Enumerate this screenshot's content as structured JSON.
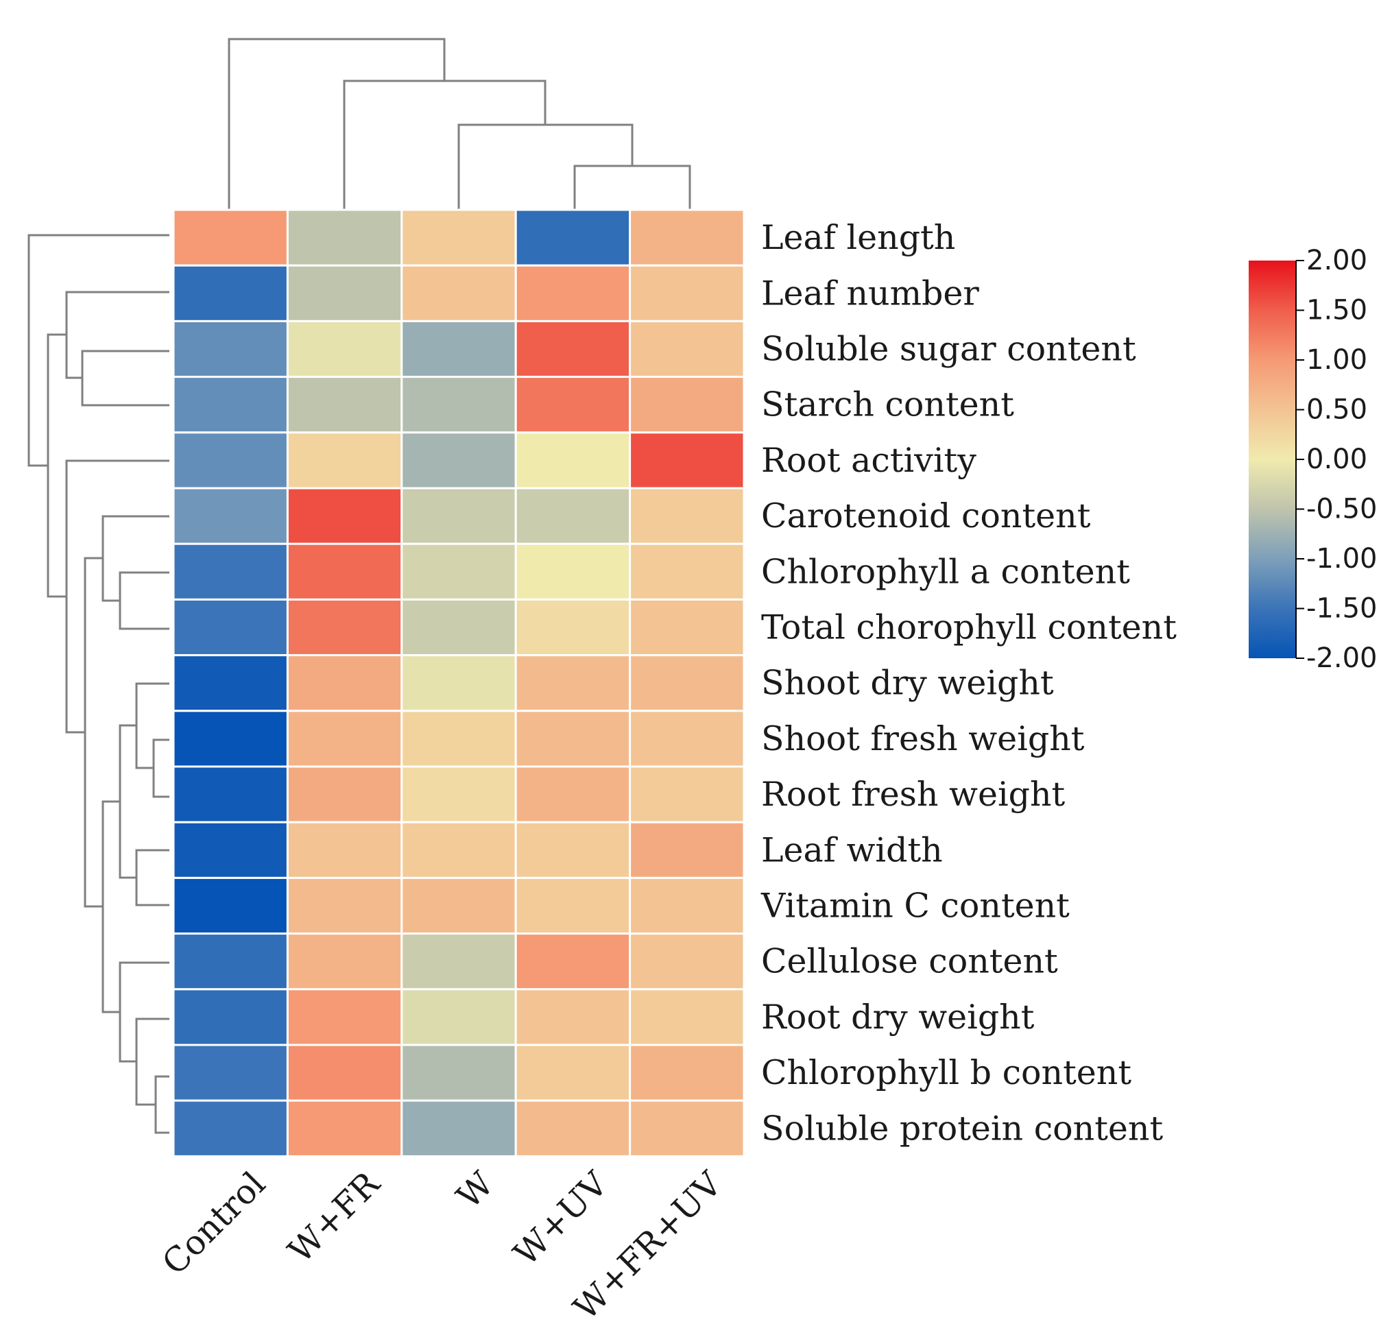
{
  "chart_data": {
    "type": "heatmap",
    "title": "",
    "columns": [
      "Control",
      "W+FR",
      "W",
      "W+UV",
      "W+FR+UV"
    ],
    "rows": [
      "Leaf length",
      "Leaf number",
      "Soluble sugar content",
      "Starch content",
      "Root activity",
      "Carotenoid content",
      "Chlorophyll a content",
      "Total chorophyll content",
      "Shoot dry weight",
      "Shoot fresh weight",
      "Root fresh weight",
      "Leaf width",
      "Vitamin C content",
      "Cellulose content",
      "Root dry weight",
      "Chlorophyll b content",
      "Soluble protein content"
    ],
    "values": [
      [
        1.0,
        -0.5,
        0.4,
        -1.6,
        0.7
      ],
      [
        -1.6,
        -0.5,
        0.5,
        1.0,
        0.5
      ],
      [
        -1.2,
        -0.1,
        -0.8,
        1.5,
        0.5
      ],
      [
        -1.2,
        -0.5,
        -0.6,
        1.3,
        0.8
      ],
      [
        -1.2,
        0.3,
        -0.7,
        0.0,
        1.6
      ],
      [
        -1.1,
        1.6,
        -0.4,
        -0.4,
        0.4
      ],
      [
        -1.5,
        1.4,
        -0.3,
        0.0,
        0.4
      ],
      [
        -1.5,
        1.3,
        -0.4,
        0.2,
        0.5
      ],
      [
        -1.9,
        0.8,
        -0.1,
        0.6,
        0.6
      ],
      [
        -2.0,
        0.7,
        0.3,
        0.6,
        0.5
      ],
      [
        -1.9,
        0.8,
        0.2,
        0.7,
        0.4
      ],
      [
        -1.9,
        0.5,
        0.4,
        0.4,
        0.8
      ],
      [
        -2.0,
        0.6,
        0.6,
        0.4,
        0.5
      ],
      [
        -1.6,
        0.7,
        -0.4,
        1.0,
        0.5
      ],
      [
        -1.6,
        1.0,
        -0.2,
        0.5,
        0.4
      ],
      [
        -1.5,
        1.1,
        -0.6,
        0.4,
        0.7
      ],
      [
        -1.5,
        1.0,
        -0.8,
        0.6,
        0.6
      ]
    ],
    "colorbar": {
      "ticks": [
        "2.00",
        "1.50",
        "1.00",
        "0.50",
        "0.00",
        "-0.50",
        "-1.00",
        "-1.50",
        "-2.00"
      ],
      "range": [
        -2.0,
        2.0
      ],
      "colormap": "RdYlBu_r"
    }
  }
}
